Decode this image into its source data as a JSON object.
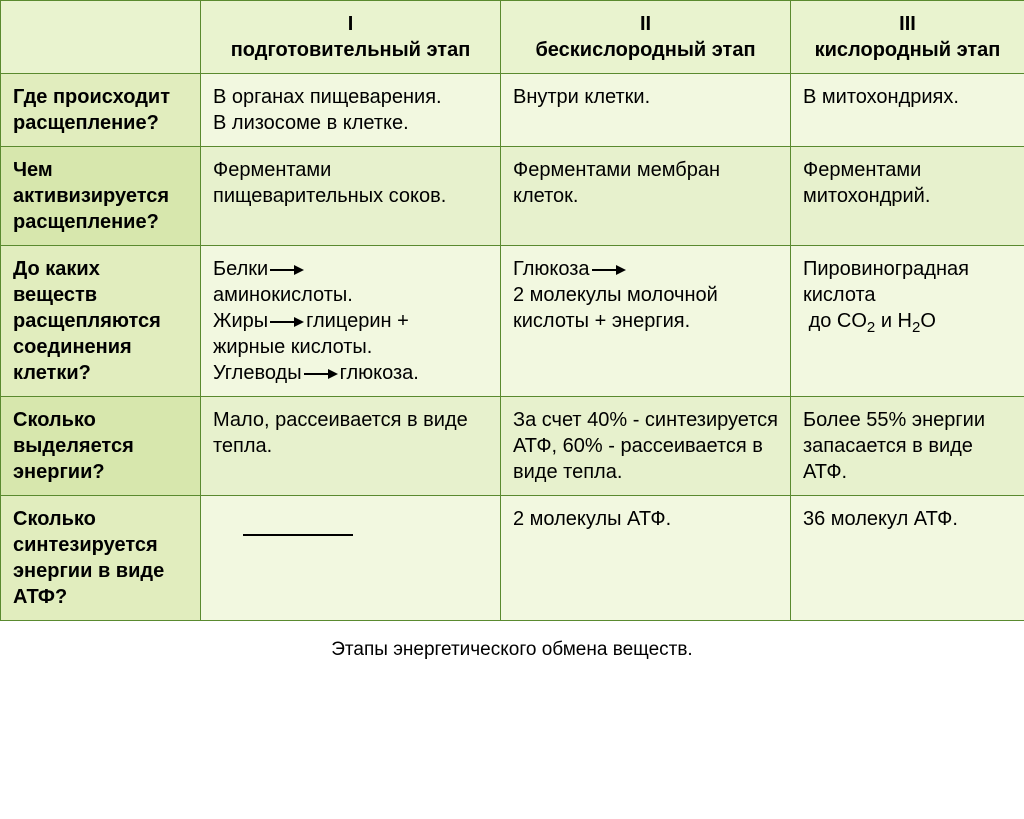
{
  "table": {
    "headers": {
      "col1_num": "I",
      "col1_label": "подготовительный этап",
      "col2_num": "II",
      "col2_label": "бескислородный этап",
      "col3_num": "III",
      "col3_label": "кислородный этап"
    },
    "rows": {
      "r1": {
        "q": "Где происходит расщепление?",
        "c1a": "В органах пищеварения.",
        "c1b": "В лизосоме в клетке.",
        "c2": "Внутри клетки.",
        "c3": "В митохондриях."
      },
      "r2": {
        "q": "Чем активизируется расщепление?",
        "c1": "Ферментами пищеварительных соков.",
        "c2": "Ферментами мембран клеток.",
        "c3": "Ферментами митохондрий."
      },
      "r3": {
        "q": "До каких веществ расщепляются соединения клетки?",
        "c1_l1a": "Белки",
        "c1_l2": "аминокислоты.",
        "c1_l3a": "Жиры",
        "c1_l3b": "глицерин +",
        "c1_l4": "жирные кислоты.",
        "c1_l5a": "Углеводы",
        "c1_l5b": "глюкоза.",
        "c2_l1": "Глюкоза",
        "c2_l2": "2 молекулы молочной кислоты + энергия.",
        "c3_l1": "Пировиноградная кислота",
        "c3_l2a": "до CO",
        "c3_l2b": " и H",
        "c3_l2c": "O"
      },
      "r4": {
        "q": "Сколько выделяется энергии?",
        "c1": "Мало, рассеивается в виде тепла.",
        "c2": "За счет 40% - синтезируется АТФ, 60% - рассеивается в виде тепла.",
        "c3": "Более 55% энергии запасается в виде АТФ."
      },
      "r5": {
        "q": "Сколько синтезируется энергии в виде АТФ?",
        "c2": "2 молекулы АТФ.",
        "c3": "36 молекул АТФ."
      }
    }
  },
  "caption": "Этапы энергетического обмена веществ.",
  "colors": {
    "border": "#5a8a2f",
    "bg_light": "#f2f8e0",
    "bg_mid": "#e7f1cd",
    "bg_head": "#e1edbe"
  }
}
